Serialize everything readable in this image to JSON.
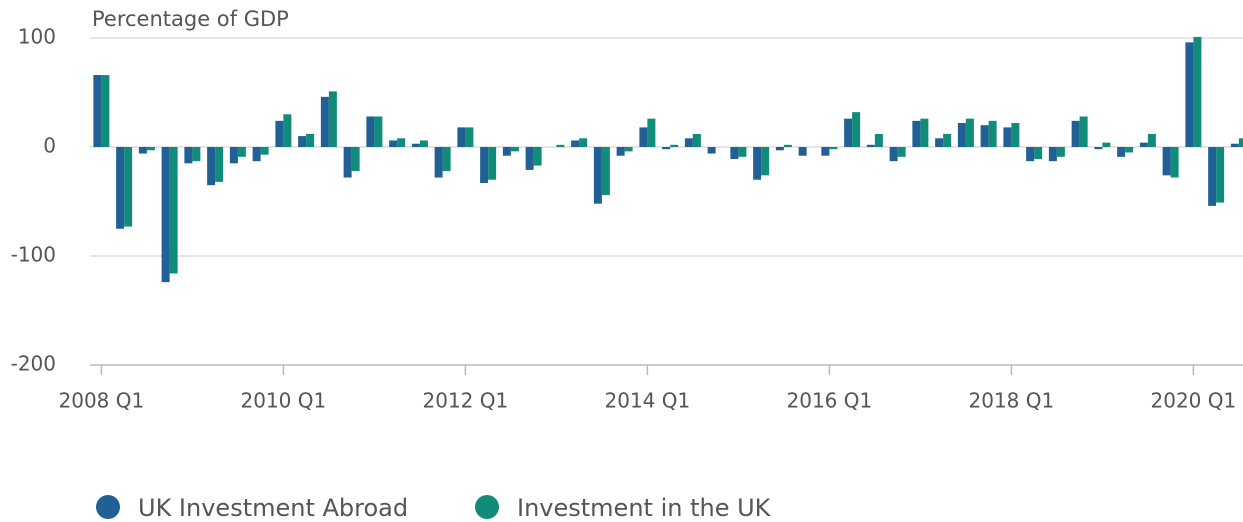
{
  "chart_data": {
    "type": "bar",
    "y_label": "Percentage of GDP",
    "categories": [
      "2008 Q1",
      null,
      null,
      null,
      null,
      null,
      null,
      null,
      "2010 Q1",
      null,
      null,
      null,
      null,
      null,
      null,
      null,
      "2012 Q1",
      null,
      null,
      null,
      null,
      null,
      null,
      null,
      "2014 Q1",
      null,
      null,
      null,
      null,
      null,
      null,
      null,
      "2016 Q1",
      null,
      null,
      null,
      null,
      null,
      null,
      null,
      "2018 Q1",
      null,
      null,
      null,
      null,
      null,
      null,
      null,
      "2020 Q1",
      null,
      null
    ],
    "series": [
      {
        "name": "UK Investment Abroad",
        "color": "#206095",
        "values": [
          66,
          -75,
          -6,
          -124,
          -15,
          -35,
          -15,
          -13,
          24,
          10,
          46,
          -28,
          28,
          6,
          3,
          -28,
          18,
          -33,
          -8,
          -21,
          0,
          6,
          -52,
          -8,
          18,
          -2,
          8,
          -6,
          -11,
          -30,
          -3,
          -8,
          -8,
          26,
          2,
          -13,
          24,
          8,
          22,
          20,
          18,
          -13,
          -13,
          24,
          -2,
          -9,
          4,
          -26,
          96,
          -54,
          3
        ]
      },
      {
        "name": "Investment in the UK",
        "color": "#118c7b",
        "values": [
          66,
          -73,
          -3,
          -116,
          -13,
          -32,
          -9,
          -7,
          30,
          12,
          51,
          -22,
          28,
          8,
          6,
          -22,
          18,
          -30,
          -4,
          -17,
          2,
          8,
          -44,
          -4,
          26,
          2,
          12,
          0,
          -9,
          -26,
          2,
          0,
          -2,
          32,
          12,
          -9,
          26,
          12,
          26,
          24,
          22,
          -11,
          -9,
          28,
          4,
          -5,
          12,
          -28,
          101,
          -51,
          8
        ]
      }
    ],
    "ylim": [
      -200,
      100
    ],
    "yticks": [
      -200,
      -100,
      0,
      100
    ],
    "grid": true
  }
}
